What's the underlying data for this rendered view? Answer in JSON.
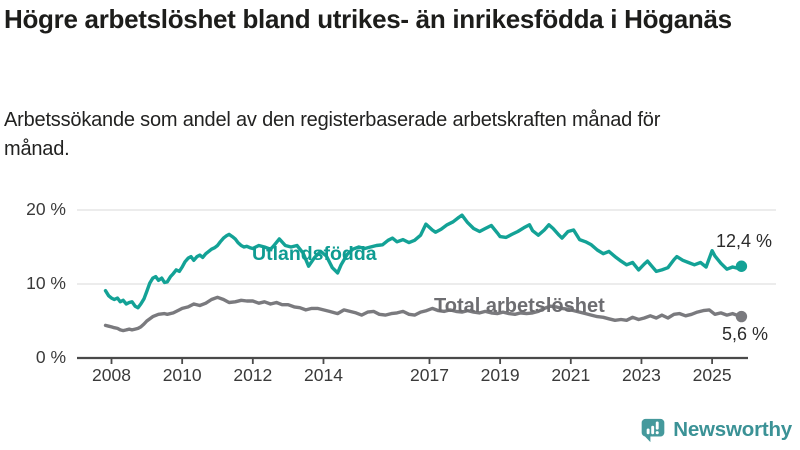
{
  "title": "Högre arbetslöshet bland utrikes- än inrikesfödda i Höganäs",
  "subtitle": "Arbetssökande som andel av den registerbaserade arbetskraften månad för månad.",
  "footer": {
    "brand": "Newsworthy",
    "icon": "bar-chart-speech-bubble-icon",
    "icon_color": "#45999c",
    "word_color": "#3b9296"
  },
  "chart_data": {
    "type": "line",
    "title": "Högre arbetslöshet bland utrikes- än inrikesfödda i Höganäs",
    "subtitle": "Arbetssökande som andel av den registerbaserade arbetskraften månad för månad.",
    "unit": "%",
    "xlabel": "",
    "ylabel": "",
    "xlim": [
      2007.83,
      2025.92
    ],
    "ylim": [
      0,
      20
    ],
    "grid": "horizontal",
    "legend_position": "inline-labels",
    "colors": {
      "grid": "#e1e1e1",
      "axis": "#4a4a4a",
      "tick_label": "#3a3a3a",
      "value_label": "#2b2b2b"
    },
    "y_ticks": [
      {
        "value": 0,
        "label": "0 %"
      },
      {
        "value": 10,
        "label": "10 %"
      },
      {
        "value": 20,
        "label": "20 %"
      }
    ],
    "y_gridlines": [
      10,
      20
    ],
    "x_ticks": [
      {
        "value": 2008,
        "label": "2008"
      },
      {
        "value": 2010,
        "label": "2010"
      },
      {
        "value": 2012,
        "label": "2012"
      },
      {
        "value": 2014,
        "label": "2014"
      },
      {
        "value": 2017,
        "label": "2017"
      },
      {
        "value": 2019,
        "label": "2019"
      },
      {
        "value": 2021,
        "label": "2021"
      },
      {
        "value": 2023,
        "label": "2023"
      },
      {
        "value": 2025,
        "label": "2025"
      }
    ],
    "series": [
      {
        "name": "Utlandsfödda",
        "color": "#13a296",
        "label_color": "#0f9c92",
        "end_label": "12,4 %",
        "end_value": 12.4,
        "points": [
          [
            2007.83,
            9.1
          ],
          [
            2007.92,
            8.4
          ],
          [
            2008.0,
            8.1
          ],
          [
            2008.08,
            7.9
          ],
          [
            2008.17,
            8.1
          ],
          [
            2008.25,
            7.6
          ],
          [
            2008.33,
            7.8
          ],
          [
            2008.42,
            7.3
          ],
          [
            2008.5,
            7.5
          ],
          [
            2008.58,
            7.6
          ],
          [
            2008.67,
            7.0
          ],
          [
            2008.75,
            6.8
          ],
          [
            2008.83,
            7.3
          ],
          [
            2008.92,
            8.0
          ],
          [
            2009.0,
            9.0
          ],
          [
            2009.08,
            10.1
          ],
          [
            2009.17,
            10.8
          ],
          [
            2009.25,
            11.0
          ],
          [
            2009.33,
            10.5
          ],
          [
            2009.42,
            10.8
          ],
          [
            2009.5,
            10.2
          ],
          [
            2009.58,
            10.3
          ],
          [
            2009.67,
            11.0
          ],
          [
            2009.75,
            11.4
          ],
          [
            2009.83,
            11.9
          ],
          [
            2009.92,
            11.7
          ],
          [
            2010.0,
            12.3
          ],
          [
            2010.08,
            13.0
          ],
          [
            2010.17,
            13.5
          ],
          [
            2010.25,
            13.7
          ],
          [
            2010.33,
            13.2
          ],
          [
            2010.42,
            13.7
          ],
          [
            2010.5,
            13.9
          ],
          [
            2010.58,
            13.6
          ],
          [
            2010.67,
            14.1
          ],
          [
            2010.75,
            14.4
          ],
          [
            2010.83,
            14.7
          ],
          [
            2010.92,
            14.9
          ],
          [
            2011.0,
            15.2
          ],
          [
            2011.08,
            15.7
          ],
          [
            2011.17,
            16.2
          ],
          [
            2011.25,
            16.5
          ],
          [
            2011.33,
            16.7
          ],
          [
            2011.42,
            16.4
          ],
          [
            2011.5,
            16.1
          ],
          [
            2011.58,
            15.6
          ],
          [
            2011.67,
            15.2
          ],
          [
            2011.75,
            15.0
          ],
          [
            2011.83,
            15.1
          ],
          [
            2011.92,
            14.9
          ],
          [
            2012.0,
            14.8
          ],
          [
            2012.17,
            15.2
          ],
          [
            2012.33,
            15.0
          ],
          [
            2012.5,
            14.7
          ],
          [
            2012.58,
            15.1
          ],
          [
            2012.75,
            16.1
          ],
          [
            2012.92,
            15.2
          ],
          [
            2013.08,
            15.0
          ],
          [
            2013.25,
            15.2
          ],
          [
            2013.42,
            14.2
          ],
          [
            2013.58,
            12.4
          ],
          [
            2013.75,
            13.6
          ],
          [
            2013.92,
            14.4
          ],
          [
            2014.08,
            13.8
          ],
          [
            2014.25,
            12.2
          ],
          [
            2014.4,
            11.5
          ],
          [
            2014.5,
            12.6
          ],
          [
            2014.67,
            14.0
          ],
          [
            2014.83,
            14.7
          ],
          [
            2015.0,
            15.0
          ],
          [
            2015.17,
            14.8
          ],
          [
            2015.33,
            15.0
          ],
          [
            2015.5,
            15.2
          ],
          [
            2015.67,
            15.3
          ],
          [
            2015.83,
            15.9
          ],
          [
            2015.95,
            16.2
          ],
          [
            2016.08,
            15.7
          ],
          [
            2016.25,
            16.0
          ],
          [
            2016.42,
            15.6
          ],
          [
            2016.58,
            15.9
          ],
          [
            2016.75,
            16.6
          ],
          [
            2016.9,
            18.1
          ],
          [
            2017.08,
            17.3
          ],
          [
            2017.17,
            17.0
          ],
          [
            2017.33,
            17.4
          ],
          [
            2017.5,
            18.0
          ],
          [
            2017.67,
            18.4
          ],
          [
            2017.83,
            19.0
          ],
          [
            2017.92,
            19.3
          ],
          [
            2018.08,
            18.3
          ],
          [
            2018.25,
            17.5
          ],
          [
            2018.42,
            17.1
          ],
          [
            2018.58,
            17.5
          ],
          [
            2018.75,
            17.9
          ],
          [
            2018.92,
            16.9
          ],
          [
            2019.0,
            16.4
          ],
          [
            2019.17,
            16.3
          ],
          [
            2019.33,
            16.7
          ],
          [
            2019.5,
            17.1
          ],
          [
            2019.67,
            17.6
          ],
          [
            2019.83,
            18.0
          ],
          [
            2019.92,
            17.2
          ],
          [
            2020.08,
            16.6
          ],
          [
            2020.25,
            17.3
          ],
          [
            2020.38,
            18.0
          ],
          [
            2020.5,
            17.5
          ],
          [
            2020.67,
            16.6
          ],
          [
            2020.75,
            16.2
          ],
          [
            2020.92,
            17.1
          ],
          [
            2021.08,
            17.3
          ],
          [
            2021.25,
            16.0
          ],
          [
            2021.42,
            15.7
          ],
          [
            2021.58,
            15.3
          ],
          [
            2021.75,
            14.6
          ],
          [
            2021.92,
            14.1
          ],
          [
            2022.08,
            14.4
          ],
          [
            2022.25,
            13.7
          ],
          [
            2022.42,
            13.1
          ],
          [
            2022.58,
            12.6
          ],
          [
            2022.75,
            12.9
          ],
          [
            2022.92,
            11.9
          ],
          [
            2023.08,
            12.7
          ],
          [
            2023.17,
            13.1
          ],
          [
            2023.33,
            12.2
          ],
          [
            2023.42,
            11.7
          ],
          [
            2023.58,
            11.9
          ],
          [
            2023.75,
            12.2
          ],
          [
            2023.92,
            13.3
          ],
          [
            2024.0,
            13.7
          ],
          [
            2024.17,
            13.2
          ],
          [
            2024.33,
            12.9
          ],
          [
            2024.5,
            12.6
          ],
          [
            2024.67,
            12.9
          ],
          [
            2024.83,
            12.3
          ],
          [
            2025.0,
            14.5
          ],
          [
            2025.08,
            13.8
          ],
          [
            2025.25,
            12.8
          ],
          [
            2025.42,
            12.0
          ],
          [
            2025.58,
            12.3
          ],
          [
            2025.75,
            12.1
          ],
          [
            2025.83,
            12.4
          ]
        ]
      },
      {
        "name": "Total arbetslöshet",
        "color": "#7a7a7e",
        "label_color": "#6d6d71",
        "end_label": "5,6 %",
        "end_value": 5.6,
        "points": [
          [
            2007.83,
            4.4
          ],
          [
            2007.92,
            4.3
          ],
          [
            2008.0,
            4.2
          ],
          [
            2008.08,
            4.1
          ],
          [
            2008.17,
            4.0
          ],
          [
            2008.25,
            3.8
          ],
          [
            2008.33,
            3.7
          ],
          [
            2008.42,
            3.8
          ],
          [
            2008.5,
            3.9
          ],
          [
            2008.58,
            3.8
          ],
          [
            2008.67,
            3.9
          ],
          [
            2008.75,
            4.0
          ],
          [
            2008.83,
            4.2
          ],
          [
            2008.92,
            4.6
          ],
          [
            2009.0,
            5.0
          ],
          [
            2009.17,
            5.6
          ],
          [
            2009.33,
            5.9
          ],
          [
            2009.5,
            6.0
          ],
          [
            2009.58,
            5.9
          ],
          [
            2009.75,
            6.1
          ],
          [
            2009.92,
            6.5
          ],
          [
            2010.0,
            6.7
          ],
          [
            2010.17,
            6.9
          ],
          [
            2010.33,
            7.3
          ],
          [
            2010.5,
            7.1
          ],
          [
            2010.67,
            7.4
          ],
          [
            2010.83,
            7.9
          ],
          [
            2011.0,
            8.2
          ],
          [
            2011.17,
            7.9
          ],
          [
            2011.33,
            7.5
          ],
          [
            2011.5,
            7.6
          ],
          [
            2011.67,
            7.8
          ],
          [
            2011.83,
            7.7
          ],
          [
            2012.0,
            7.7
          ],
          [
            2012.17,
            7.4
          ],
          [
            2012.33,
            7.6
          ],
          [
            2012.5,
            7.3
          ],
          [
            2012.67,
            7.5
          ],
          [
            2012.83,
            7.2
          ],
          [
            2013.0,
            7.2
          ],
          [
            2013.17,
            6.9
          ],
          [
            2013.33,
            6.8
          ],
          [
            2013.5,
            6.5
          ],
          [
            2013.67,
            6.7
          ],
          [
            2013.83,
            6.7
          ],
          [
            2014.0,
            6.5
          ],
          [
            2014.17,
            6.3
          ],
          [
            2014.4,
            6.0
          ],
          [
            2014.58,
            6.5
          ],
          [
            2014.75,
            6.3
          ],
          [
            2014.92,
            6.1
          ],
          [
            2015.08,
            5.8
          ],
          [
            2015.25,
            6.2
          ],
          [
            2015.42,
            6.3
          ],
          [
            2015.58,
            5.9
          ],
          [
            2015.75,
            5.8
          ],
          [
            2015.92,
            6.0
          ],
          [
            2016.08,
            6.1
          ],
          [
            2016.25,
            6.3
          ],
          [
            2016.42,
            5.9
          ],
          [
            2016.58,
            5.8
          ],
          [
            2016.75,
            6.2
          ],
          [
            2016.92,
            6.4
          ],
          [
            2017.08,
            6.7
          ],
          [
            2017.25,
            6.4
          ],
          [
            2017.42,
            6.3
          ],
          [
            2017.58,
            6.5
          ],
          [
            2017.75,
            6.3
          ],
          [
            2017.92,
            6.2
          ],
          [
            2018.08,
            6.4
          ],
          [
            2018.25,
            6.2
          ],
          [
            2018.42,
            6.1
          ],
          [
            2018.58,
            6.3
          ],
          [
            2018.75,
            6.1
          ],
          [
            2018.92,
            6.0
          ],
          [
            2019.08,
            6.2
          ],
          [
            2019.25,
            6.0
          ],
          [
            2019.42,
            5.9
          ],
          [
            2019.58,
            6.1
          ],
          [
            2019.75,
            6.0
          ],
          [
            2019.92,
            6.1
          ],
          [
            2020.08,
            6.3
          ],
          [
            2020.25,
            6.7
          ],
          [
            2020.42,
            7.0
          ],
          [
            2020.58,
            6.9
          ],
          [
            2020.75,
            6.7
          ],
          [
            2020.92,
            6.6
          ],
          [
            2021.08,
            6.4
          ],
          [
            2021.25,
            6.2
          ],
          [
            2021.42,
            6.0
          ],
          [
            2021.58,
            5.8
          ],
          [
            2021.75,
            5.6
          ],
          [
            2021.92,
            5.5
          ],
          [
            2022.08,
            5.3
          ],
          [
            2022.25,
            5.1
          ],
          [
            2022.42,
            5.2
          ],
          [
            2022.58,
            5.1
          ],
          [
            2022.75,
            5.5
          ],
          [
            2022.92,
            5.2
          ],
          [
            2023.08,
            5.4
          ],
          [
            2023.25,
            5.7
          ],
          [
            2023.42,
            5.4
          ],
          [
            2023.58,
            5.8
          ],
          [
            2023.75,
            5.4
          ],
          [
            2023.92,
            5.9
          ],
          [
            2024.08,
            6.0
          ],
          [
            2024.25,
            5.7
          ],
          [
            2024.42,
            5.9
          ],
          [
            2024.58,
            6.2
          ],
          [
            2024.75,
            6.4
          ],
          [
            2024.92,
            6.5
          ],
          [
            2025.08,
            5.9
          ],
          [
            2025.25,
            6.1
          ],
          [
            2025.42,
            5.8
          ],
          [
            2025.58,
            6.0
          ],
          [
            2025.75,
            5.7
          ],
          [
            2025.83,
            5.6
          ]
        ]
      }
    ]
  }
}
